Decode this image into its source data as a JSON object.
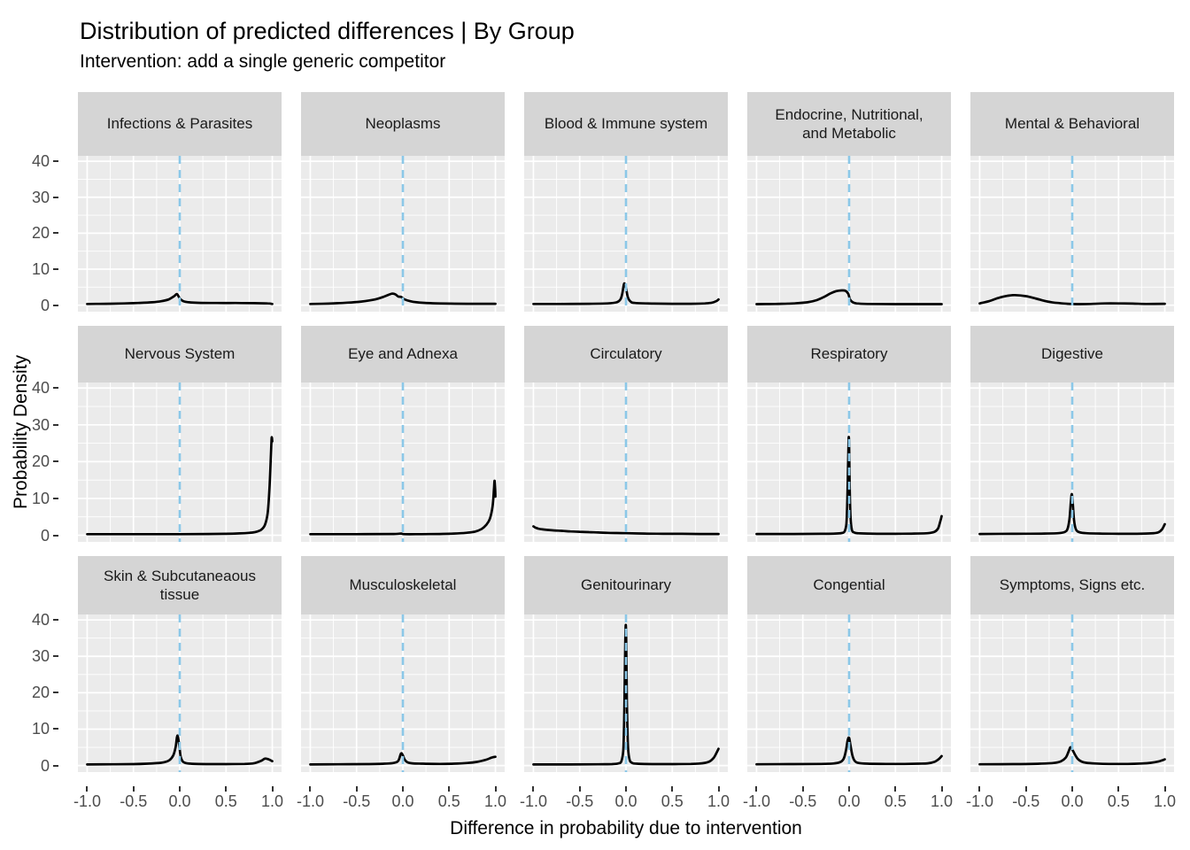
{
  "title": "Distribution of predicted differences | By Group",
  "subtitle": "Intervention: add a single generic competitor",
  "axes": {
    "x_title": "Difference in probability due to intervention",
    "y_title": "Probability Density",
    "x_tick_labels": [
      "-1.0",
      "-0.5",
      "0.0",
      "0.5",
      "1.0"
    ],
    "y_tick_labels": [
      "0",
      "10",
      "20",
      "30",
      "40"
    ]
  },
  "colors": {
    "panel_bg": "#EBEBEB",
    "strip_bg": "#D5D5D5",
    "grid": "#FFFFFF",
    "vline": "#8BC8E8",
    "curve": "#000000",
    "tick_text": "#4D4D4D",
    "axis_tick": "#333333"
  },
  "chart_data": {
    "type": "line",
    "subtype": "faceted-density",
    "title": "Distribution of predicted differences | By Group",
    "xlabel": "Difference in probability due to intervention",
    "ylabel": "Probability Density",
    "x_range": [
      -1.1,
      1.1
    ],
    "y_range": [
      -1.8,
      41.5
    ],
    "x_major": [
      -1,
      -0.5,
      0,
      0.5,
      1
    ],
    "x_minor": [
      -0.75,
      -0.25,
      0.25,
      0.75
    ],
    "y_major": [
      0,
      10,
      20,
      30,
      40
    ],
    "y_minor": [
      5,
      15,
      25,
      35
    ],
    "grid": true,
    "vline_x": 0,
    "facets": [
      {
        "label": "Infections & Parasites",
        "points": [
          [
            -1,
            0.35
          ],
          [
            -0.8,
            0.4
          ],
          [
            -0.6,
            0.5
          ],
          [
            -0.45,
            0.6
          ],
          [
            -0.3,
            0.8
          ],
          [
            -0.2,
            1.1
          ],
          [
            -0.12,
            1.6
          ],
          [
            -0.06,
            2.5
          ],
          [
            -0.03,
            3.1
          ],
          [
            0,
            1.9
          ],
          [
            0.04,
            1.1
          ],
          [
            0.1,
            0.8
          ],
          [
            0.2,
            0.65
          ],
          [
            0.4,
            0.6
          ],
          [
            0.6,
            0.6
          ],
          [
            0.8,
            0.55
          ],
          [
            0.95,
            0.5
          ],
          [
            1,
            0.35
          ]
        ]
      },
      {
        "label": "Neoplasms",
        "points": [
          [
            -1,
            0.35
          ],
          [
            -0.8,
            0.45
          ],
          [
            -0.6,
            0.7
          ],
          [
            -0.45,
            1.0
          ],
          [
            -0.3,
            1.6
          ],
          [
            -0.2,
            2.4
          ],
          [
            -0.12,
            3.2
          ],
          [
            -0.08,
            3.0
          ],
          [
            -0.05,
            2.4
          ],
          [
            -0.02,
            2.3
          ],
          [
            0.02,
            1.6
          ],
          [
            0.08,
            1.1
          ],
          [
            0.15,
            0.8
          ],
          [
            0.3,
            0.55
          ],
          [
            0.5,
            0.45
          ],
          [
            0.7,
            0.4
          ],
          [
            1,
            0.4
          ]
        ]
      },
      {
        "label": "Blood & Immune system",
        "points": [
          [
            -1,
            0.35
          ],
          [
            -0.7,
            0.35
          ],
          [
            -0.4,
            0.4
          ],
          [
            -0.2,
            0.5
          ],
          [
            -0.1,
            0.8
          ],
          [
            -0.06,
            1.6
          ],
          [
            -0.04,
            3.2
          ],
          [
            -0.02,
            6.0
          ],
          [
            0,
            4.8
          ],
          [
            0.02,
            2.2
          ],
          [
            0.05,
            1.0
          ],
          [
            0.1,
            0.6
          ],
          [
            0.3,
            0.45
          ],
          [
            0.5,
            0.4
          ],
          [
            0.7,
            0.4
          ],
          [
            0.85,
            0.5
          ],
          [
            0.93,
            0.7
          ],
          [
            0.98,
            1.2
          ],
          [
            1,
            1.6
          ]
        ]
      },
      {
        "label": "Endocrine, Nutritional,\nand Metabolic",
        "points": [
          [
            -1,
            0.3
          ],
          [
            -0.8,
            0.35
          ],
          [
            -0.6,
            0.5
          ],
          [
            -0.45,
            0.8
          ],
          [
            -0.35,
            1.4
          ],
          [
            -0.27,
            2.3
          ],
          [
            -0.2,
            3.3
          ],
          [
            -0.14,
            3.9
          ],
          [
            -0.08,
            4.1
          ],
          [
            -0.04,
            4.0
          ],
          [
            -0.01,
            3.2
          ],
          [
            0.01,
            1.6
          ],
          [
            0.04,
            0.8
          ],
          [
            0.08,
            0.5
          ],
          [
            0.2,
            0.35
          ],
          [
            0.5,
            0.3
          ],
          [
            0.8,
            0.3
          ],
          [
            1,
            0.3
          ]
        ]
      },
      {
        "label": "Mental & Behavioral",
        "points": [
          [
            -1,
            0.5
          ],
          [
            -0.9,
            1.1
          ],
          [
            -0.8,
            2.0
          ],
          [
            -0.7,
            2.6
          ],
          [
            -0.62,
            2.8
          ],
          [
            -0.5,
            2.5
          ],
          [
            -0.4,
            1.9
          ],
          [
            -0.3,
            1.2
          ],
          [
            -0.22,
            0.8
          ],
          [
            -0.15,
            0.6
          ],
          [
            -0.05,
            0.4
          ],
          [
            0.05,
            0.3
          ],
          [
            0.2,
            0.35
          ],
          [
            0.35,
            0.5
          ],
          [
            0.5,
            0.5
          ],
          [
            0.65,
            0.45
          ],
          [
            0.8,
            0.35
          ],
          [
            1,
            0.4
          ]
        ]
      },
      {
        "label": "Nervous System",
        "points": [
          [
            -1,
            0.3
          ],
          [
            -0.5,
            0.3
          ],
          [
            0,
            0.3
          ],
          [
            0.3,
            0.35
          ],
          [
            0.5,
            0.4
          ],
          [
            0.65,
            0.5
          ],
          [
            0.75,
            0.65
          ],
          [
            0.82,
            0.9
          ],
          [
            0.88,
            1.5
          ],
          [
            0.92,
            2.8
          ],
          [
            0.95,
            6
          ],
          [
            0.97,
            13
          ],
          [
            0.985,
            22
          ],
          [
            0.993,
            26.5
          ],
          [
            1,
            25.5
          ]
        ]
      },
      {
        "label": "Eye and Adnexa",
        "points": [
          [
            -1,
            0.3
          ],
          [
            -0.5,
            0.3
          ],
          [
            -0.1,
            0.35
          ],
          [
            -0.02,
            0.45
          ],
          [
            0.02,
            0.3
          ],
          [
            0.2,
            0.3
          ],
          [
            0.4,
            0.35
          ],
          [
            0.55,
            0.45
          ],
          [
            0.68,
            0.65
          ],
          [
            0.78,
            1.0
          ],
          [
            0.85,
            1.7
          ],
          [
            0.9,
            2.8
          ],
          [
            0.94,
            4.5
          ],
          [
            0.97,
            8
          ],
          [
            0.985,
            13
          ],
          [
            0.99,
            14.8
          ],
          [
            0.995,
            13.5
          ],
          [
            1,
            10.5
          ]
        ]
      },
      {
        "label": "Circulatory",
        "points": [
          [
            -1,
            2.4
          ],
          [
            -0.98,
            2.1
          ],
          [
            -0.95,
            1.8
          ],
          [
            -0.9,
            1.6
          ],
          [
            -0.8,
            1.35
          ],
          [
            -0.7,
            1.2
          ],
          [
            -0.6,
            1.05
          ],
          [
            -0.5,
            0.95
          ],
          [
            -0.4,
            0.85
          ],
          [
            -0.3,
            0.75
          ],
          [
            -0.2,
            0.65
          ],
          [
            -0.1,
            0.6
          ],
          [
            0,
            0.55
          ],
          [
            0.2,
            0.45
          ],
          [
            0.4,
            0.4
          ],
          [
            0.6,
            0.38
          ],
          [
            0.8,
            0.35
          ],
          [
            1,
            0.35
          ]
        ]
      },
      {
        "label": "Respiratory",
        "points": [
          [
            -1,
            0.35
          ],
          [
            -0.6,
            0.35
          ],
          [
            -0.3,
            0.4
          ],
          [
            -0.15,
            0.45
          ],
          [
            -0.08,
            0.6
          ],
          [
            -0.05,
            1.0
          ],
          [
            -0.03,
            3
          ],
          [
            -0.02,
            9
          ],
          [
            -0.012,
            18
          ],
          [
            -0.006,
            26
          ],
          [
            0,
            25
          ],
          [
            0.006,
            14
          ],
          [
            0.015,
            5
          ],
          [
            0.03,
            1.5
          ],
          [
            0.06,
            0.7
          ],
          [
            0.12,
            0.5
          ],
          [
            0.3,
            0.4
          ],
          [
            0.5,
            0.4
          ],
          [
            0.7,
            0.45
          ],
          [
            0.85,
            0.55
          ],
          [
            0.92,
            0.9
          ],
          [
            0.96,
            1.8
          ],
          [
            0.985,
            3.8
          ],
          [
            1,
            5.2
          ]
        ]
      },
      {
        "label": "Digestive",
        "points": [
          [
            -1,
            0.35
          ],
          [
            -0.6,
            0.4
          ],
          [
            -0.3,
            0.45
          ],
          [
            -0.15,
            0.55
          ],
          [
            -0.08,
            0.9
          ],
          [
            -0.05,
            1.8
          ],
          [
            -0.03,
            4.5
          ],
          [
            -0.015,
            9
          ],
          [
            -0.005,
            11.2
          ],
          [
            0.005,
            9
          ],
          [
            0.02,
            4
          ],
          [
            0.04,
            1.6
          ],
          [
            0.08,
            0.8
          ],
          [
            0.15,
            0.55
          ],
          [
            0.3,
            0.45
          ],
          [
            0.5,
            0.4
          ],
          [
            0.7,
            0.4
          ],
          [
            0.85,
            0.5
          ],
          [
            0.93,
            0.8
          ],
          [
            0.97,
            1.6
          ],
          [
            1,
            3.0
          ]
        ]
      },
      {
        "label": "Skin & Subcutaneaous\ntissue",
        "points": [
          [
            -1,
            0.3
          ],
          [
            -0.7,
            0.35
          ],
          [
            -0.5,
            0.4
          ],
          [
            -0.35,
            0.5
          ],
          [
            -0.25,
            0.65
          ],
          [
            -0.17,
            0.9
          ],
          [
            -0.11,
            1.5
          ],
          [
            -0.07,
            2.8
          ],
          [
            -0.045,
            5
          ],
          [
            -0.03,
            7.8
          ],
          [
            -0.02,
            8.0
          ],
          [
            -0.005,
            5.5
          ],
          [
            0.01,
            2.5
          ],
          [
            0.03,
            1.2
          ],
          [
            0.06,
            0.7
          ],
          [
            0.12,
            0.5
          ],
          [
            0.3,
            0.4
          ],
          [
            0.5,
            0.4
          ],
          [
            0.7,
            0.45
          ],
          [
            0.8,
            0.6
          ],
          [
            0.88,
            1.3
          ],
          [
            0.92,
            1.9
          ],
          [
            0.96,
            1.7
          ],
          [
            1,
            1.2
          ]
        ]
      },
      {
        "label": "Musculoskeletal",
        "points": [
          [
            -1,
            0.3
          ],
          [
            -0.7,
            0.35
          ],
          [
            -0.4,
            0.4
          ],
          [
            -0.2,
            0.5
          ],
          [
            -0.1,
            0.7
          ],
          [
            -0.05,
            1.3
          ],
          [
            -0.02,
            3.3
          ],
          [
            0,
            2.8
          ],
          [
            0.02,
            1.6
          ],
          [
            0.05,
            0.9
          ],
          [
            0.1,
            0.6
          ],
          [
            0.2,
            0.5
          ],
          [
            0.4,
            0.45
          ],
          [
            0.55,
            0.5
          ],
          [
            0.7,
            0.7
          ],
          [
            0.8,
            1.0
          ],
          [
            0.9,
            1.6
          ],
          [
            0.96,
            2.2
          ],
          [
            1,
            2.4
          ]
        ]
      },
      {
        "label": "Genitourinary",
        "points": [
          [
            -1,
            0.3
          ],
          [
            -0.6,
            0.3
          ],
          [
            -0.3,
            0.35
          ],
          [
            -0.15,
            0.4
          ],
          [
            -0.08,
            0.6
          ],
          [
            -0.05,
            1.2
          ],
          [
            -0.03,
            4
          ],
          [
            -0.02,
            12
          ],
          [
            -0.012,
            26
          ],
          [
            -0.005,
            37.5
          ],
          [
            0.002,
            36
          ],
          [
            0.01,
            18
          ],
          [
            0.02,
            6
          ],
          [
            0.035,
            2
          ],
          [
            0.06,
            0.8
          ],
          [
            0.12,
            0.5
          ],
          [
            0.3,
            0.4
          ],
          [
            0.5,
            0.4
          ],
          [
            0.7,
            0.45
          ],
          [
            0.82,
            0.6
          ],
          [
            0.9,
            1.1
          ],
          [
            0.95,
            2.2
          ],
          [
            0.98,
            3.6
          ],
          [
            1,
            4.6
          ]
        ]
      },
      {
        "label": "Congential",
        "points": [
          [
            -1,
            0.35
          ],
          [
            -0.6,
            0.4
          ],
          [
            -0.3,
            0.45
          ],
          [
            -0.17,
            0.55
          ],
          [
            -0.1,
            0.9
          ],
          [
            -0.06,
            1.8
          ],
          [
            -0.035,
            4
          ],
          [
            -0.015,
            7
          ],
          [
            0,
            7.6
          ],
          [
            0.015,
            5.5
          ],
          [
            0.035,
            2.8
          ],
          [
            0.06,
            1.3
          ],
          [
            0.1,
            0.7
          ],
          [
            0.2,
            0.5
          ],
          [
            0.4,
            0.45
          ],
          [
            0.6,
            0.45
          ],
          [
            0.75,
            0.5
          ],
          [
            0.85,
            0.6
          ],
          [
            0.92,
            1.0
          ],
          [
            0.97,
            1.8
          ],
          [
            1,
            2.6
          ]
        ]
      },
      {
        "label": "Symptoms, Signs etc.",
        "points": [
          [
            -1,
            0.35
          ],
          [
            -0.6,
            0.4
          ],
          [
            -0.35,
            0.5
          ],
          [
            -0.2,
            0.7
          ],
          [
            -0.12,
            1.2
          ],
          [
            -0.07,
            2.2
          ],
          [
            -0.04,
            3.8
          ],
          [
            -0.02,
            5.0
          ],
          [
            0,
            4.4
          ],
          [
            0.03,
            3.0
          ],
          [
            0.06,
            1.8
          ],
          [
            0.1,
            1.1
          ],
          [
            0.15,
            0.75
          ],
          [
            0.25,
            0.55
          ],
          [
            0.4,
            0.45
          ],
          [
            0.6,
            0.45
          ],
          [
            0.75,
            0.55
          ],
          [
            0.85,
            0.75
          ],
          [
            0.93,
            1.1
          ],
          [
            0.98,
            1.5
          ],
          [
            1,
            1.7
          ]
        ]
      }
    ]
  }
}
